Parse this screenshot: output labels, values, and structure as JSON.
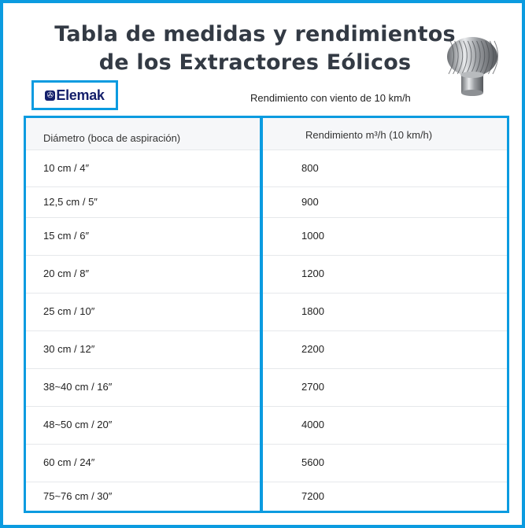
{
  "colors": {
    "accent": "#0b9be0",
    "logo": "#15206b"
  },
  "title_line1": "Tabla de medidas y rendimientos",
  "title_line2": "de los Extractores Eólicos",
  "logo": {
    "text": "Elemak",
    "icon": "fan-icon"
  },
  "subtitle": "Rendimiento con viento de 10 km/h",
  "table": {
    "headers": [
      "Diámetro (boca de aspiración)",
      "Rendimiento m³/h (10 km/h)"
    ],
    "rows": [
      [
        "10 cm / 4″",
        "800"
      ],
      [
        "12,5 cm / 5″",
        "900"
      ],
      [
        "15 cm / 6″",
        "1000"
      ],
      [
        "20 cm / 8″",
        "1200"
      ],
      [
        "25 cm / 10″",
        "1800"
      ],
      [
        "30 cm / 12″",
        "2200"
      ],
      [
        "38~40 cm / 16″",
        "2700"
      ],
      [
        "48~50 cm / 20″",
        "4000"
      ],
      [
        "60 cm / 24″",
        "5600"
      ],
      [
        "75~76 cm / 30″",
        "7200"
      ]
    ]
  }
}
